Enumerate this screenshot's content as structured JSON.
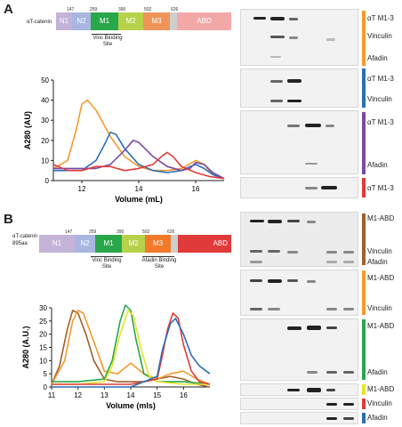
{
  "panelA": {
    "letter": "A",
    "construct": {
      "label": "αT-catenin",
      "boundaries": [
        "147",
        "259",
        "390",
        "502",
        "626"
      ],
      "segments": [
        "N1",
        "N2",
        "M1",
        "M2",
        "M3",
        "ABD"
      ],
      "site_label": "Vinc Binding\nSite"
    },
    "blot_labels": [
      "αT M1-3",
      "Vinculin",
      "Afadin",
      "αT M1-3",
      "Vinculin",
      "αT M1-3",
      "Afadin",
      "αT M1-3"
    ]
  },
  "panelB": {
    "letter": "B",
    "construct": {
      "label": "αT-catenin\n895aa",
      "boundaries": [
        "147",
        "259",
        "390",
        "502",
        "626"
      ],
      "segments": [
        "N1",
        "N2",
        "M1",
        "M2",
        "M3",
        "ABD"
      ],
      "site1_label": "Vinc Binding\nSite",
      "site2_label": "Afadin Binding\nSite"
    },
    "blot_labels": [
      "M1-ABD",
      "Vinculin",
      "Afadin",
      "M1-ABD",
      "Vinculin",
      "M1-ABD",
      "Afadin",
      "M1-ABD",
      "Vinculin",
      "Afadin"
    ]
  },
  "colors": {
    "orange": "#f39a2e",
    "blue": "#2a6fb5",
    "purple": "#7b4aa6",
    "red": "#e03a3a",
    "brown": "#a0602a",
    "green": "#2aa74a",
    "yellow": "#e6e62a"
  },
  "chart_data": [
    {
      "type": "line",
      "xlabel": "Volume (mL)",
      "ylabel": "A280 (AU)",
      "xlim": [
        11,
        17
      ],
      "ylim": [
        0,
        50
      ],
      "xticks": [
        "12",
        "14",
        "16"
      ],
      "yticks": [
        "0",
        "10",
        "20",
        "30",
        "40",
        "50"
      ],
      "series": [
        {
          "color": "#f39a2e",
          "x": [
            11,
            11.5,
            11.8,
            12,
            12.2,
            12.5,
            13,
            13.5,
            14,
            14.5,
            15,
            15.5,
            16,
            16.3,
            16.6,
            17
          ],
          "y": [
            6,
            10,
            25,
            38,
            40,
            35,
            22,
            12,
            7,
            5,
            5,
            6,
            10,
            8,
            3,
            1
          ]
        },
        {
          "color": "#2a6fb5",
          "x": [
            11,
            12,
            12.5,
            12.8,
            13,
            13.2,
            13.5,
            14,
            14.5,
            15,
            15.5,
            15.8,
            16,
            16.3,
            16.6,
            17
          ],
          "y": [
            5,
            5,
            10,
            18,
            24,
            23,
            16,
            8,
            5,
            4,
            5,
            7,
            8,
            6,
            3,
            1
          ]
        },
        {
          "color": "#7b4aa6",
          "x": [
            11,
            12,
            12.5,
            13,
            13.5,
            13.8,
            14,
            14.5,
            15,
            15.5,
            15.8,
            16,
            16.3,
            16.6,
            17
          ],
          "y": [
            6,
            6,
            6,
            8,
            15,
            20,
            19,
            12,
            7,
            5,
            6,
            9,
            8,
            4,
            1
          ]
        },
        {
          "color": "#e03a3a",
          "x": [
            11,
            11.5,
            12,
            12.5,
            13,
            13.5,
            14,
            14.5,
            14.8,
            15,
            15.2,
            15.5,
            16,
            16.5,
            17
          ],
          "y": [
            8,
            5,
            5,
            7,
            7,
            5,
            6,
            8,
            12,
            14,
            12,
            7,
            4,
            2,
            1
          ]
        }
      ]
    },
    {
      "type": "line",
      "xlabel": "Volume (mls)",
      "ylabel": "A280 (A.U.)",
      "xlim": [
        11,
        17
      ],
      "ylim": [
        0,
        30
      ],
      "xticks": [
        "11",
        "12",
        "13",
        "14",
        "15",
        "16"
      ],
      "yticks": [
        "0",
        "5",
        "10",
        "15",
        "20",
        "25",
        "30"
      ],
      "series": [
        {
          "color": "#a0602a",
          "x": [
            11,
            11.3,
            11.6,
            11.8,
            12,
            12.3,
            12.6,
            13,
            13.5,
            14,
            14.5,
            15,
            15.5,
            16,
            16.5,
            17
          ],
          "y": [
            1,
            8,
            22,
            29,
            28,
            20,
            10,
            3,
            2,
            2,
            2,
            3,
            4,
            3,
            1,
            0
          ]
        },
        {
          "color": "#f39a2e",
          "x": [
            11,
            11.5,
            11.8,
            12,
            12.2,
            12.5,
            13,
            13.5,
            14,
            14.5,
            15,
            15.5,
            16,
            16.5,
            17
          ],
          "y": [
            1,
            10,
            25,
            29,
            28,
            20,
            6,
            5,
            9,
            5,
            3,
            5,
            6,
            3,
            1
          ]
        },
        {
          "color": "#2aa74a",
          "x": [
            11,
            12,
            13,
            13.3,
            13.6,
            13.8,
            14,
            14.2,
            14.5,
            15,
            16,
            17
          ],
          "y": [
            2,
            2,
            3,
            10,
            25,
            31,
            29,
            18,
            5,
            2,
            2,
            1
          ]
        },
        {
          "color": "#e6e62a",
          "x": [
            11,
            12,
            13,
            13.3,
            13.6,
            13.9,
            14.1,
            14.4,
            14.7,
            15,
            16,
            17
          ],
          "y": [
            1,
            1,
            2,
            8,
            20,
            29,
            27,
            14,
            4,
            2,
            1,
            1
          ]
        },
        {
          "color": "#e03a3a",
          "x": [
            11,
            12,
            13,
            14,
            15,
            15.2,
            15.4,
            15.6,
            15.8,
            16,
            16.3,
            16.6,
            17
          ],
          "y": [
            1,
            1,
            1,
            1,
            3,
            12,
            22,
            28,
            26,
            16,
            6,
            2,
            1
          ]
        },
        {
          "color": "#2a6fb5",
          "x": [
            11,
            12,
            13,
            14,
            15,
            15.2,
            15.5,
            15.7,
            16,
            16.3,
            16.6,
            17
          ],
          "y": [
            0,
            0,
            0,
            0,
            4,
            14,
            24,
            26,
            20,
            12,
            8,
            5
          ]
        }
      ]
    }
  ]
}
